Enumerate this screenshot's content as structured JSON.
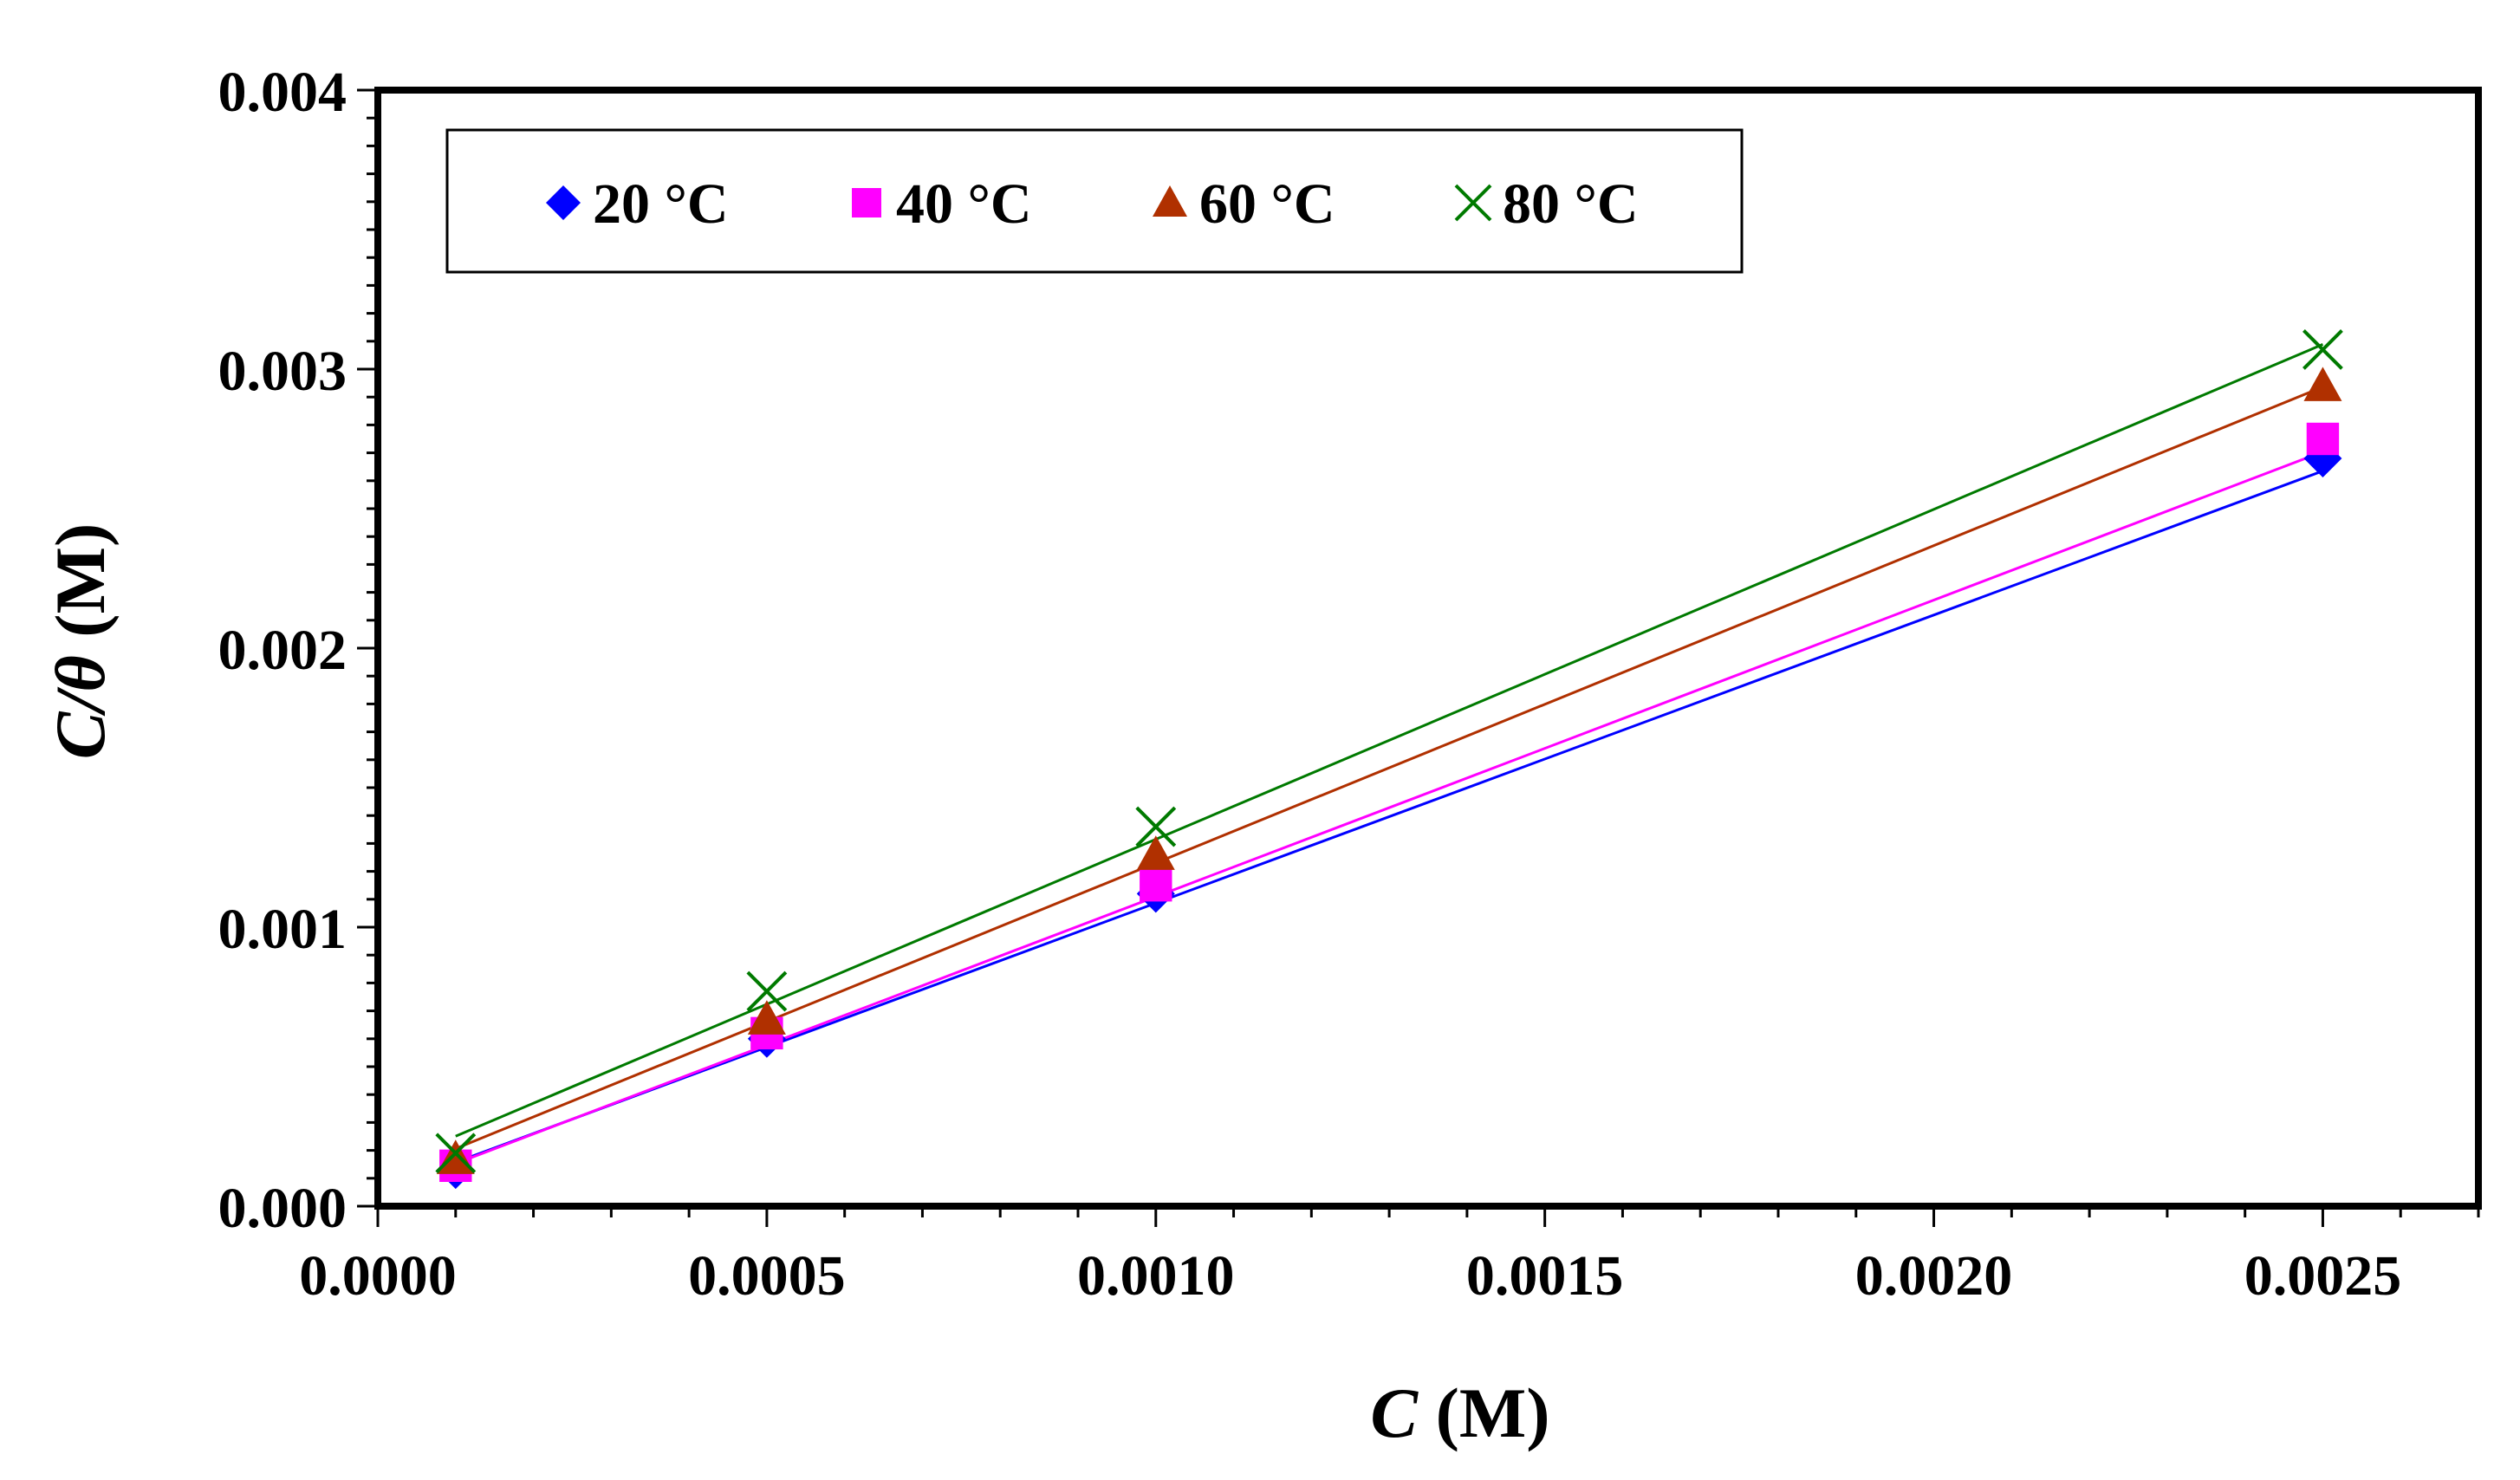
{
  "chart_data": {
    "type": "scatter",
    "title": "",
    "xlabel": {
      "var": "C",
      "unit": " (M)"
    },
    "ylabel": {
      "var": "C/θ",
      "unit": " (M)"
    },
    "xlim": [
      0,
      0.0027
    ],
    "ylim": [
      0,
      0.004
    ],
    "x_ticks": [
      "0.0000",
      "0.0005",
      "0.0010",
      "0.0015",
      "0.0020",
      "0.0025"
    ],
    "x_tick_values": [
      0,
      0.0005,
      0.001,
      0.0015,
      0.002,
      0.0025
    ],
    "y_ticks": [
      "0.000",
      "0.001",
      "0.002",
      "0.003",
      "0.004"
    ],
    "y_tick_values": [
      0,
      0.001,
      0.002,
      0.003,
      0.004
    ],
    "legend_position": "top-left",
    "series": [
      {
        "name": "20 °C",
        "marker": "diamond",
        "color": "#0000FF",
        "x": [
          0.0001,
          0.0005,
          0.001,
          0.0025
        ],
        "y": [
          0.00013,
          0.0006,
          0.00112,
          0.00268
        ],
        "fit": {
          "slope": 1.0325,
          "intercept": 5.38e-05
        }
      },
      {
        "name": "40 °C",
        "marker": "square",
        "color": "#FF00FF",
        "x": [
          0.0001,
          0.0005,
          0.001,
          0.0025
        ],
        "y": [
          0.000145,
          0.00062,
          0.00115,
          0.00275
        ],
        "fit": {
          "slope": 1.063,
          "intercept": 4.63e-05
        }
      },
      {
        "name": "60 °C",
        "marker": "triangle",
        "color": "#B03000",
        "x": [
          0.0001,
          0.0005,
          0.001,
          0.0025
        ],
        "y": [
          0.00017,
          0.00067,
          0.00126,
          0.00294
        ],
        "fit": {
          "slope": 1.1375,
          "intercept": 9.25e-05
        }
      },
      {
        "name": "80 °C",
        "marker": "x",
        "color": "#007A00",
        "x": [
          0.0001,
          0.0005,
          0.001,
          0.0025
        ],
        "y": [
          0.00019,
          0.00077,
          0.00136,
          0.00307
        ],
        "fit": {
          "slope": 1.1825,
          "intercept": 0.0001325
        }
      }
    ]
  }
}
